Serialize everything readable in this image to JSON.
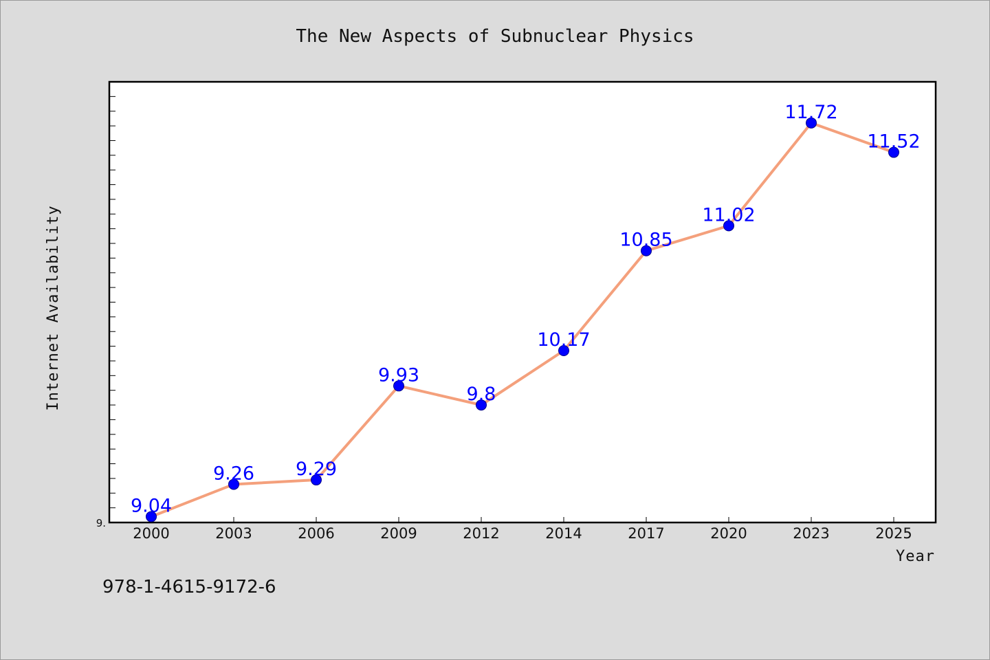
{
  "chart_data": {
    "type": "line",
    "title": "The New Aspects of Subnuclear Physics",
    "xlabel": "Year",
    "ylabel": "Internet Availability",
    "categories": [
      "2000",
      "2003",
      "2006",
      "2009",
      "2012",
      "2014",
      "2017",
      "2020",
      "2023",
      "2025"
    ],
    "series": [
      {
        "values": [
          9.04,
          9.26,
          9.29,
          9.93,
          9.8,
          10.17,
          10.85,
          11.02,
          11.72,
          11.52
        ]
      }
    ],
    "data_labels": [
      "9.04",
      "9.26",
      "9.29",
      "9.93",
      "9.8",
      "10.17",
      "10.85",
      "11.02",
      "11.72",
      "11.52"
    ],
    "y_tick_labels": [
      "9."
    ],
    "ylim": [
      9.0,
      12.0
    ],
    "grid": false,
    "colors": {
      "line": "#f4a07c",
      "marker": "#0000ff",
      "data_label": "#0000ff",
      "plot_background": "#ffffff",
      "page_background": "#dcdcdc"
    }
  },
  "footer_text": "978-1-4615-9172-6"
}
